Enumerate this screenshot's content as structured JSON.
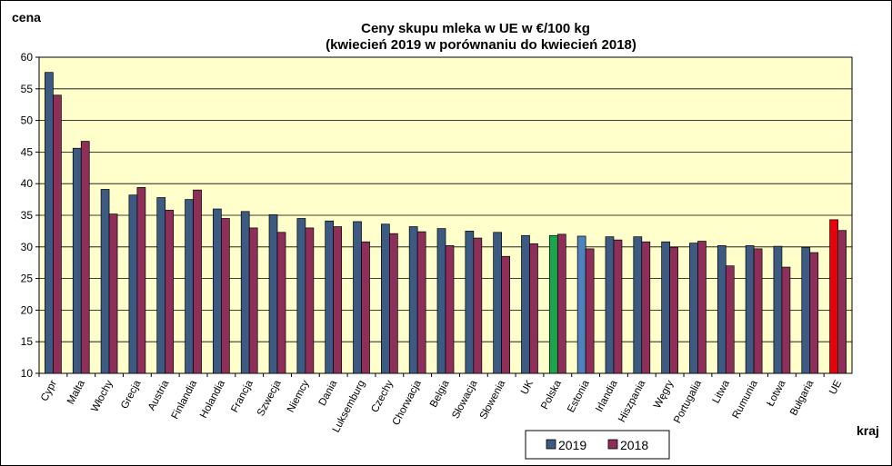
{
  "chart_data": {
    "type": "bar",
    "title_line1": "Ceny skupu mleka  w UE w €/100 kg",
    "title_line2": "(kwiecień  2019 w porównaniu do kwiecień  2018)",
    "ylabel": "cena",
    "xlabel": "kraj",
    "ylim": [
      10,
      60
    ],
    "yticks": [
      10,
      15,
      20,
      25,
      30,
      35,
      40,
      45,
      50,
      55,
      60
    ],
    "grid": true,
    "legend_position": "bottom-right",
    "plot_background": "#ffffcc",
    "categories": [
      "Cypr",
      "Malta",
      "Włochy",
      "Grecja",
      "Austria",
      "Finlandia",
      "Holandia",
      "Francja",
      "Szwecja",
      "Niemcy",
      "Dania",
      "Luksemburg",
      "Czechy",
      "Chorwacja",
      "Belgia",
      "Słowacja",
      "Słowenia",
      "UK",
      "Polska",
      "Estonia",
      "Irlandia",
      "Hiszpania",
      "Węgry",
      "Portugalia",
      "Litwa",
      "Rumunia",
      "Łotwa",
      "Bułgaria",
      "UE"
    ],
    "series": [
      {
        "name": "2019",
        "color": "#3c5a82",
        "values": [
          57.6,
          45.6,
          39.1,
          38.2,
          37.8,
          37.5,
          36.0,
          35.6,
          35.1,
          34.5,
          34.1,
          34.0,
          33.6,
          33.2,
          32.9,
          32.5,
          32.3,
          31.8,
          31.8,
          31.7,
          31.6,
          31.6,
          30.8,
          30.6,
          30.2,
          30.2,
          30.1,
          29.9,
          34.3
        ],
        "highlight": {
          "Polska": "#1aa64a",
          "Estonia": "#4f81bd",
          "UE": "#e8000b"
        }
      },
      {
        "name": "2018",
        "color": "#8e2f5a",
        "values": [
          54.0,
          46.7,
          35.2,
          39.4,
          35.8,
          39.0,
          34.5,
          33.0,
          32.3,
          33.0,
          33.2,
          30.8,
          32.1,
          32.4,
          30.2,
          31.4,
          28.5,
          30.5,
          32.0,
          29.7,
          31.1,
          30.8,
          29.9,
          30.9,
          27.0,
          29.7,
          26.8,
          29.1,
          32.6
        ]
      }
    ]
  }
}
